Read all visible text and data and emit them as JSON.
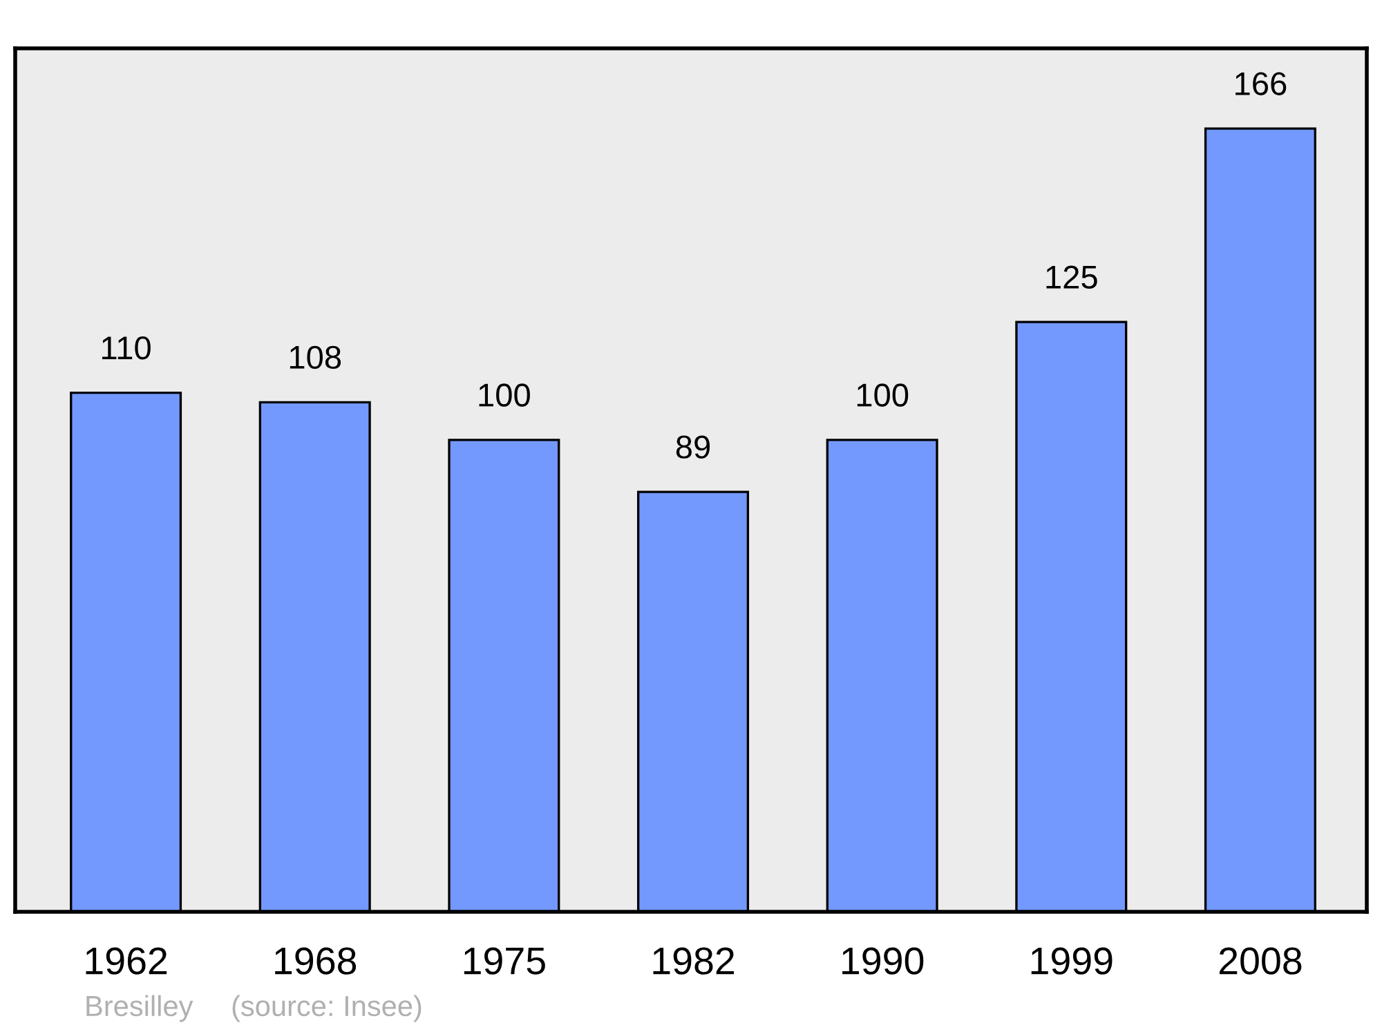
{
  "chart_data": {
    "type": "bar",
    "categories": [
      "1962",
      "1968",
      "1975",
      "1982",
      "1990",
      "1999",
      "2008"
    ],
    "values": [
      110,
      108,
      100,
      89,
      100,
      125,
      166
    ],
    "color": "#7399ff",
    "ylim": [
      0,
      183
    ],
    "data_labels": true,
    "tick_labels": "x",
    "grid": false,
    "annotations": [
      "Bresilley",
      "(source: Insee)"
    ]
  }
}
